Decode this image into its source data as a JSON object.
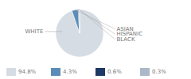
{
  "chart_data": {
    "type": "pie",
    "categories": [
      "WHITE",
      "ASIAN",
      "HISPANIC",
      "BLACK"
    ],
    "values": [
      94.8,
      4.3,
      0.6,
      0.3
    ],
    "value_labels": [
      "94.8%",
      "4.3%",
      "0.6%",
      "0.3%"
    ],
    "colors": [
      "#d6dce4",
      "#5b8db8",
      "#1f3864",
      "#aab8c8"
    ],
    "legend": "bottom"
  }
}
